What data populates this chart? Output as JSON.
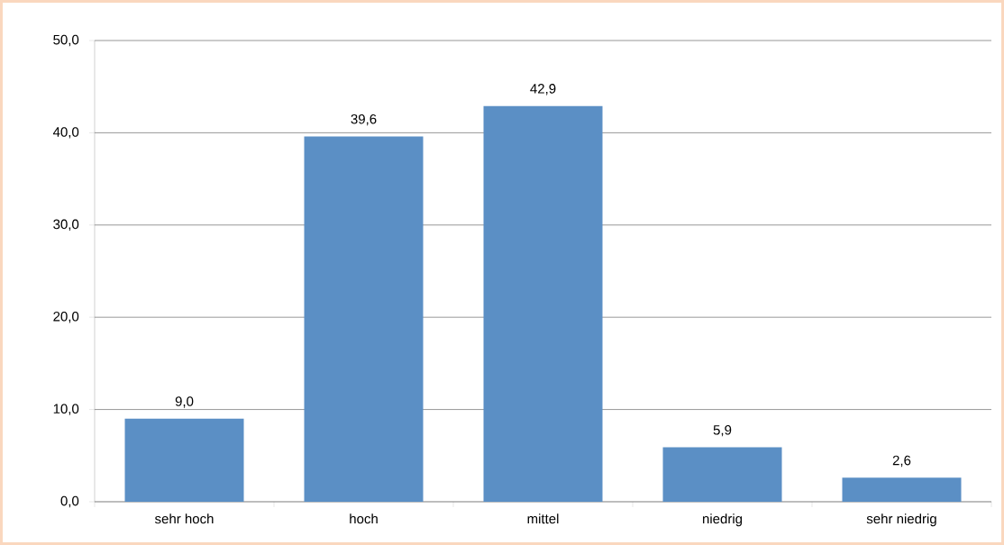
{
  "chart_data": {
    "type": "bar",
    "categories": [
      "sehr hoch",
      "hoch",
      "mittel",
      "niedrig",
      "sehr niedrig"
    ],
    "values": [
      9.0,
      39.6,
      42.9,
      5.9,
      2.6
    ],
    "value_labels": [
      "9,0",
      "39,6",
      "42,9",
      "5,9",
      "2,6"
    ],
    "color": "#5b8fc5",
    "ylim": [
      0,
      50
    ],
    "yticks": [
      {
        "value": 0,
        "label": "0,0"
      },
      {
        "value": 10,
        "label": "10,0"
      },
      {
        "value": 20,
        "label": "20,0"
      },
      {
        "value": 30,
        "label": "30,0"
      },
      {
        "value": 40,
        "label": "40,0"
      },
      {
        "value": 50,
        "label": "50,0"
      }
    ],
    "grid": "y"
  }
}
